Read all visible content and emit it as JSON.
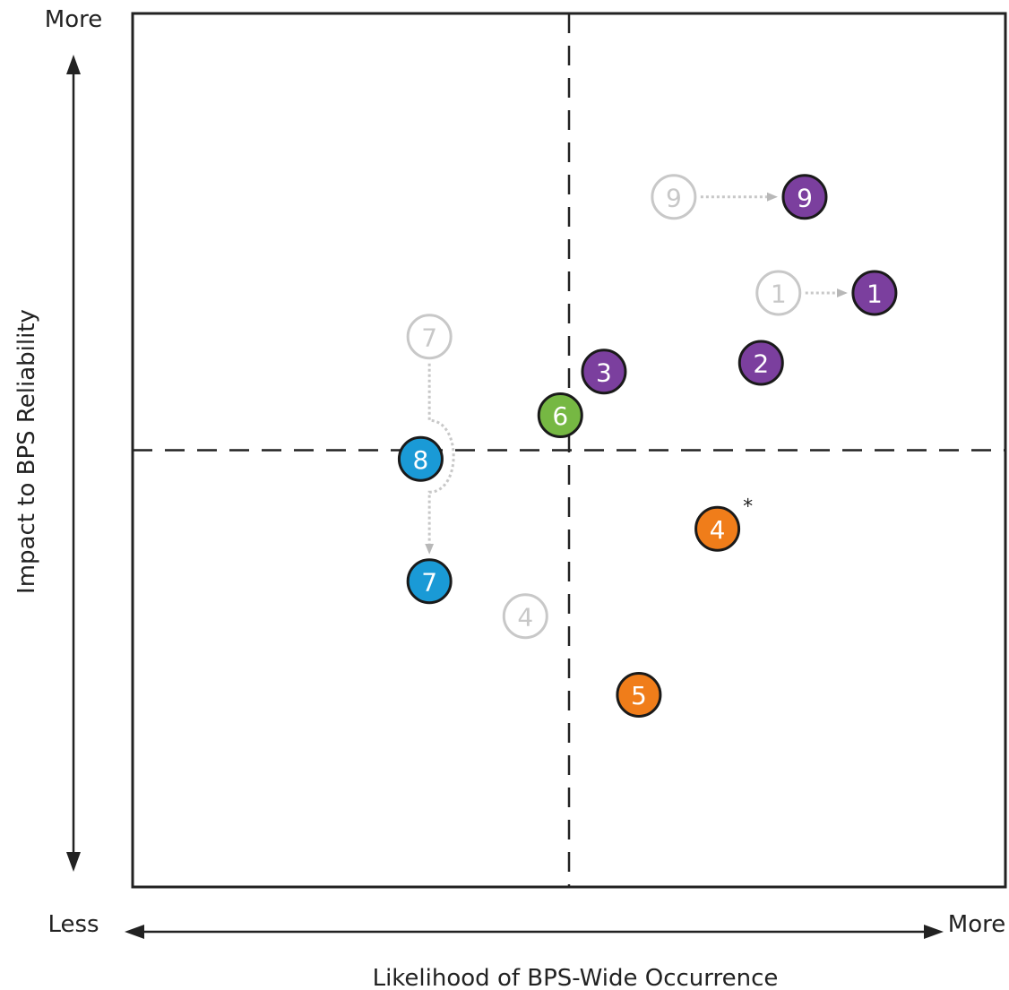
{
  "chart_data": {
    "type": "scatter",
    "title": "",
    "xlabel": "Likelihood of BPS-Wide Occurrence",
    "ylabel": "Impact to BPS Reliability",
    "x_axis_ends": {
      "low": "Less",
      "high": "More"
    },
    "y_axis_ends": {
      "high": "More"
    },
    "xlim": [
      0,
      10
    ],
    "ylim": [
      0,
      10
    ],
    "quadrant_divider": {
      "x": 5,
      "y": 5
    },
    "grid": false,
    "colors": {
      "purple": "#7b3f9e",
      "green": "#76b843",
      "orange": "#f07d1a",
      "blue": "#1a9ad6",
      "prior": "#c8c8c8"
    },
    "points": [
      {
        "label": "9",
        "x": 7.7,
        "y": 7.9,
        "color": "purple",
        "status": "current"
      },
      {
        "label": "9",
        "x": 6.2,
        "y": 7.9,
        "color": "prior",
        "status": "prior"
      },
      {
        "label": "1",
        "x": 8.5,
        "y": 6.8,
        "color": "purple",
        "status": "current"
      },
      {
        "label": "1",
        "x": 7.4,
        "y": 6.8,
        "color": "prior",
        "status": "prior"
      },
      {
        "label": "2",
        "x": 7.2,
        "y": 6.0,
        "color": "purple",
        "status": "current"
      },
      {
        "label": "3",
        "x": 5.4,
        "y": 5.9,
        "color": "purple",
        "status": "current"
      },
      {
        "label": "6",
        "x": 4.9,
        "y": 5.4,
        "color": "green",
        "status": "current"
      },
      {
        "label": "7",
        "x": 3.4,
        "y": 6.3,
        "color": "prior",
        "status": "prior"
      },
      {
        "label": "8",
        "x": 3.3,
        "y": 4.9,
        "color": "blue",
        "status": "current"
      },
      {
        "label": "7",
        "x": 3.4,
        "y": 3.5,
        "color": "blue",
        "status": "current"
      },
      {
        "label": "4",
        "x": 6.7,
        "y": 4.1,
        "color": "orange",
        "status": "current",
        "note": "*"
      },
      {
        "label": "4",
        "x": 4.5,
        "y": 3.1,
        "color": "prior",
        "status": "prior"
      },
      {
        "label": "5",
        "x": 5.8,
        "y": 2.2,
        "color": "orange",
        "status": "current"
      }
    ],
    "arrows": [
      {
        "from": [
          6.2,
          7.9
        ],
        "to": [
          7.7,
          7.9
        ]
      },
      {
        "from": [
          7.4,
          6.8
        ],
        "to": [
          8.5,
          6.8
        ]
      },
      {
        "from": [
          3.4,
          6.3
        ],
        "to": [
          3.4,
          3.5
        ],
        "detour": true
      }
    ]
  }
}
